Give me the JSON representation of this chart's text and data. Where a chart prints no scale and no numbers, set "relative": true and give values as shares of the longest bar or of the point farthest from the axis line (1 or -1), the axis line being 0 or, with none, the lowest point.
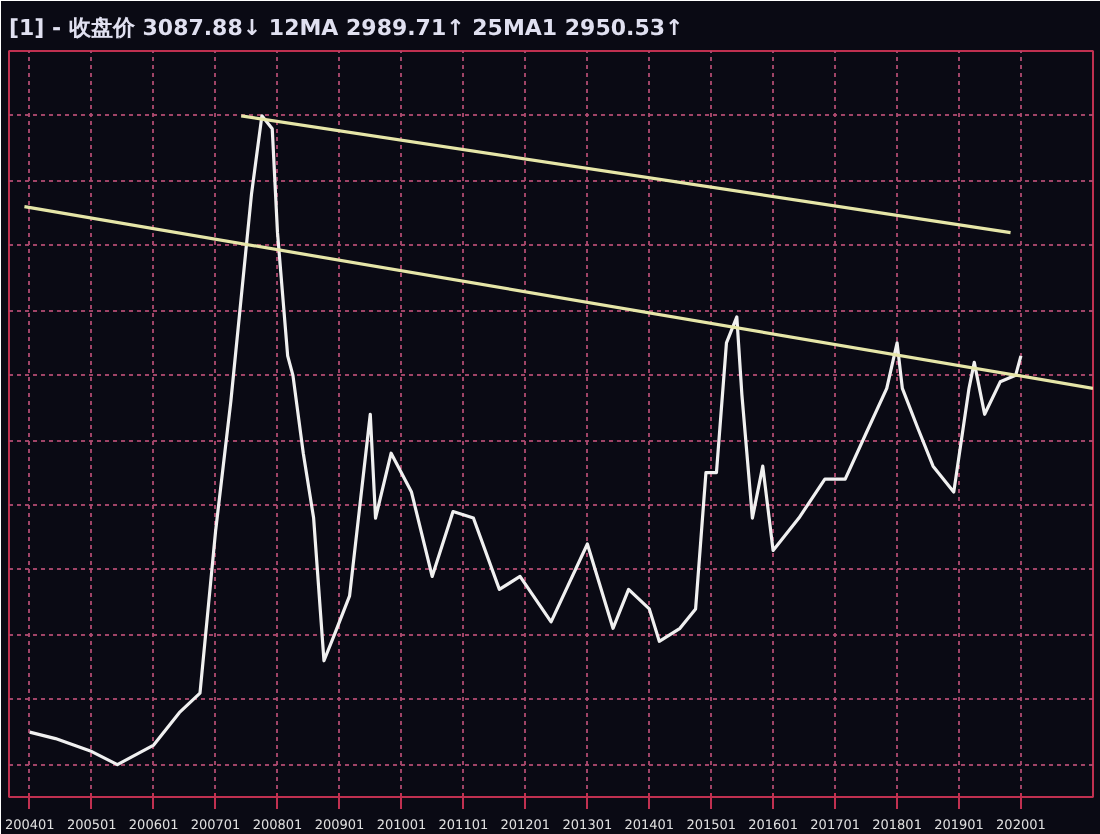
{
  "chart_data": {
    "type": "line",
    "title": "[1] - 收盘价 3087.88↓ 12MA 2989.71↑ 25MA1 2950.53↑",
    "relative": true,
    "grid": true,
    "marker": "none",
    "line_style": "solid",
    "xlim": [
      "2003-09",
      "2021-03"
    ],
    "xticks": [
      {
        "value": "2004-01",
        "label": "200401"
      },
      {
        "value": "2005-01",
        "label": "200501"
      },
      {
        "value": "2006-01",
        "label": "200601"
      },
      {
        "value": "2007-01",
        "label": "200701"
      },
      {
        "value": "2008-01",
        "label": "200801"
      },
      {
        "value": "2009-01",
        "label": "200901"
      },
      {
        "value": "2010-01",
        "label": "201001"
      },
      {
        "value": "2011-01",
        "label": "201101"
      },
      {
        "value": "2012-01",
        "label": "201201"
      },
      {
        "value": "2013-01",
        "label": "201301"
      },
      {
        "value": "2014-01",
        "label": "201401"
      },
      {
        "value": "2015-01",
        "label": "201501"
      },
      {
        "value": "2016-01",
        "label": "201601"
      },
      {
        "value": "2017-01",
        "label": "201701"
      },
      {
        "value": "2018-01",
        "label": "201801"
      },
      {
        "value": "2019-01",
        "label": "201901"
      },
      {
        "value": "2020-01",
        "label": "202001"
      }
    ],
    "series": [
      {
        "color": "#f0f0f0",
        "x": [
          "2004-01",
          "2004-06",
          "2005-01",
          "2005-06",
          "2006-01",
          "2006-06",
          "2006-10",
          "2007-01",
          "2007-04",
          "2007-08",
          "2007-10",
          "2007-12",
          "2008-01",
          "2008-03",
          "2008-04",
          "2008-06",
          "2008-08",
          "2008-10",
          "2008-12",
          "2009-03",
          "2009-07",
          "2009-08",
          "2009-11",
          "2010-03",
          "2010-07",
          "2010-11",
          "2011-03",
          "2011-08",
          "2011-12",
          "2012-06",
          "2013-01",
          "2013-06",
          "2013-09",
          "2014-01",
          "2014-03",
          "2014-07",
          "2014-10",
          "2014-12",
          "2015-02",
          "2015-04",
          "2015-06",
          "2015-07",
          "2015-09",
          "2015-11",
          "2016-01",
          "2016-06",
          "2016-11",
          "2017-03",
          "2017-07",
          "2017-11",
          "2018-01",
          "2018-02",
          "2018-05",
          "2018-08",
          "2018-12",
          "2019-03",
          "2019-04",
          "2019-06",
          "2019-09",
          "2019-12",
          "2020-01"
        ],
        "values": [
          0.05,
          0.04,
          0.02,
          0,
          0.03,
          0.08,
          0.11,
          0.36,
          0.56,
          0.88,
          1,
          0.98,
          0.82,
          0.63,
          0.6,
          0.48,
          0.38,
          0.16,
          0.2,
          0.26,
          0.54,
          0.38,
          0.48,
          0.42,
          0.29,
          0.39,
          0.38,
          0.27,
          0.29,
          0.22,
          0.34,
          0.21,
          0.27,
          0.24,
          0.19,
          0.21,
          0.24,
          0.45,
          0.45,
          0.65,
          0.69,
          0.57,
          0.38,
          0.46,
          0.33,
          0.38,
          0.44,
          0.44,
          0.51,
          0.58,
          0.65,
          0.58,
          0.52,
          0.46,
          0.42,
          0.58,
          0.62,
          0.54,
          0.59,
          0.6,
          0.63
        ]
      },
      {
        "type": "line",
        "color": "#e6e6a8",
        "x": [
          "2007-06",
          "2019-11"
        ],
        "values": [
          1,
          0.82
        ]
      },
      {
        "type": "line",
        "color": "#e6e6a8",
        "x": [
          "2003-12",
          "2021-03"
        ],
        "values": [
          0.86,
          0.58
        ]
      }
    ]
  }
}
